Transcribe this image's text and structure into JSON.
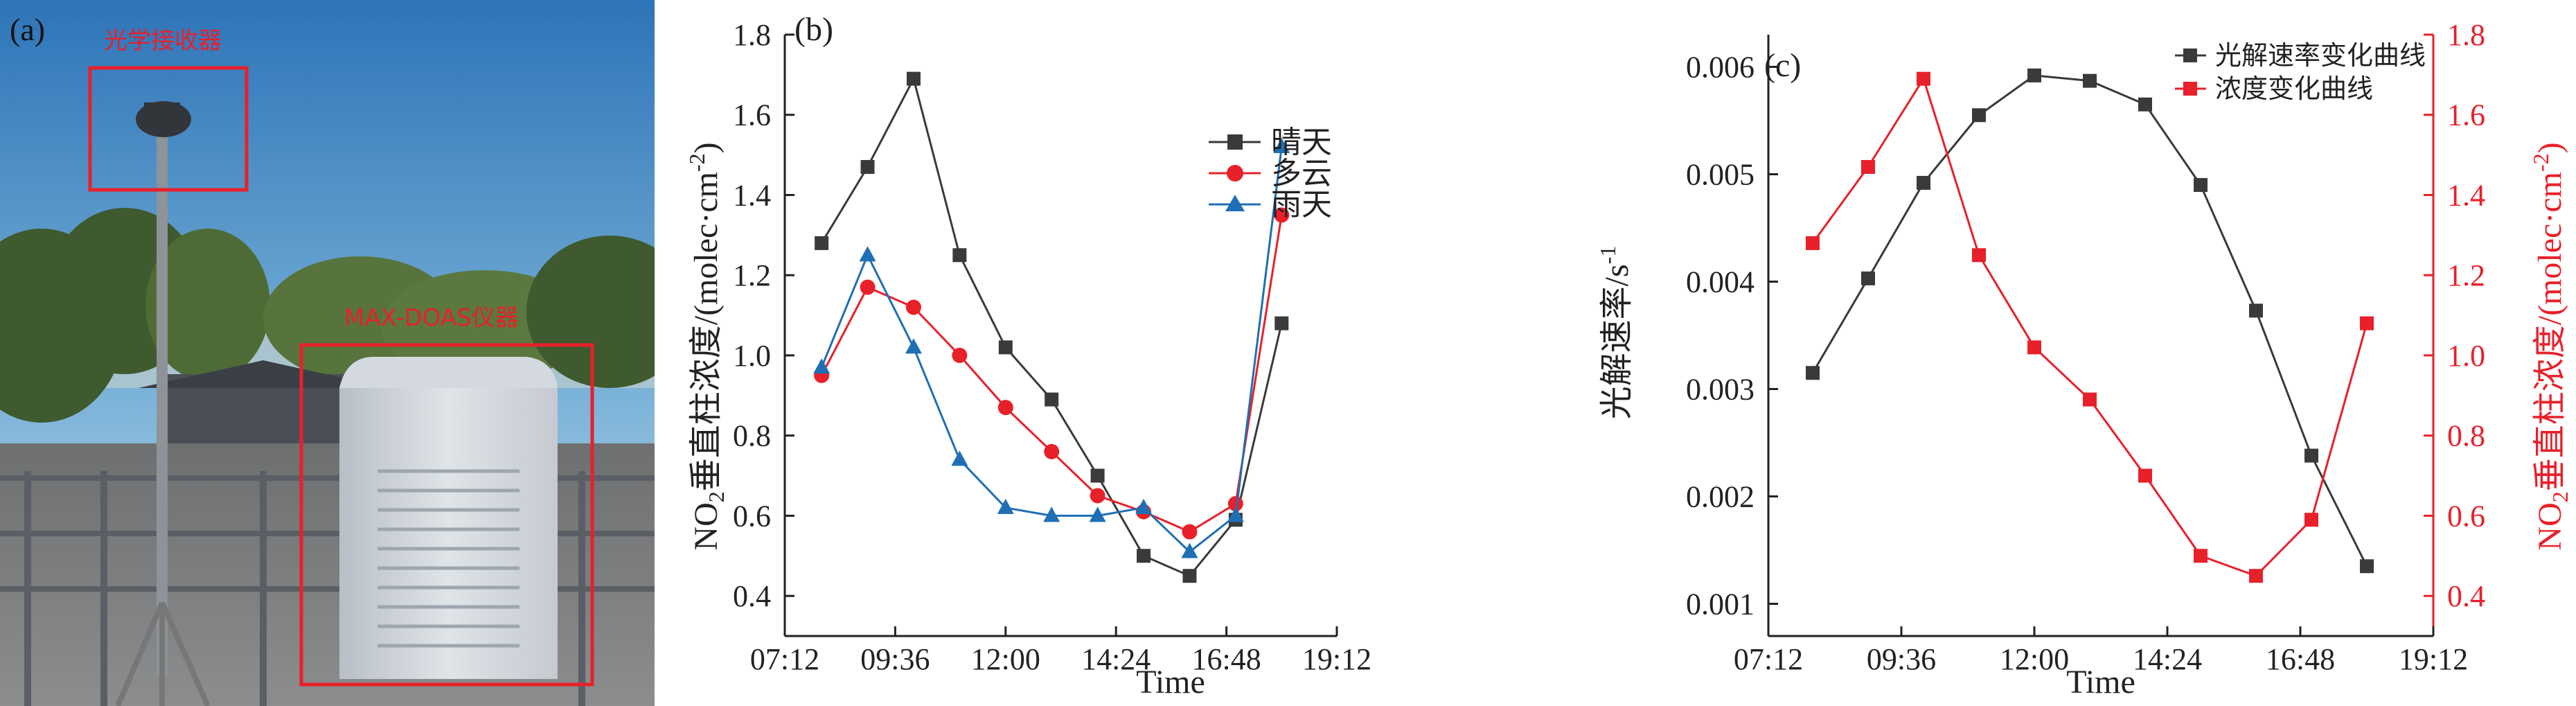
{
  "panel_a": {
    "label": "(a)",
    "annotation_receiver": "光学接收器",
    "annotation_instrument": "MAX-DOAS仪器",
    "colors": {
      "box": "#e8202a"
    }
  },
  "chart_data": [
    {
      "panel_label": "(b)",
      "type": "line",
      "x": [
        "08:00",
        "09:00",
        "10:00",
        "11:00",
        "12:00",
        "13:00",
        "14:00",
        "15:00",
        "16:00",
        "17:00",
        "18:00"
      ],
      "xlabel": "Time",
      "ylabel_main": "NO",
      "ylabel_sub": "2",
      "ylabel_rest": "垂直柱浓度/(molec·cm",
      "ylabel_sup": "-2",
      "ylabel_end": ")",
      "xlim": [
        "07:12",
        "19:12"
      ],
      "xticks": [
        "07:12",
        "09:36",
        "12:00",
        "14:24",
        "16:48",
        "19:12"
      ],
      "ylim": [
        0.3,
        1.8
      ],
      "yticks": [
        "0.4",
        "0.6",
        "0.8",
        "1.0",
        "1.2",
        "1.4",
        "1.6",
        "1.8"
      ],
      "legend_position": "top-right",
      "series": [
        {
          "name": "晴天",
          "marker": "square",
          "color": "#3a3a3a",
          "values": [
            1.28,
            1.47,
            1.69,
            1.25,
            1.02,
            0.89,
            0.7,
            0.5,
            0.45,
            0.59,
            1.08
          ]
        },
        {
          "name": "多云",
          "marker": "circle",
          "color": "#e8202a",
          "values": [
            0.95,
            1.17,
            1.12,
            1.0,
            0.87,
            0.76,
            0.65,
            0.61,
            0.56,
            0.63,
            1.35
          ]
        },
        {
          "name": "雨天",
          "marker": "triangle",
          "color": "#1f6fb5",
          "values": [
            0.97,
            1.25,
            1.02,
            0.74,
            0.62,
            0.6,
            0.6,
            0.62,
            0.51,
            0.6,
            1.52
          ]
        }
      ]
    },
    {
      "panel_label": "(c)",
      "type": "line",
      "x": [
        "08:00",
        "09:00",
        "10:00",
        "11:00",
        "12:00",
        "13:00",
        "14:00",
        "15:00",
        "16:00",
        "17:00",
        "18:00"
      ],
      "xlabel": "Time",
      "xlim": [
        "07:12",
        "19:12"
      ],
      "xticks": [
        "07:12",
        "09:36",
        "12:00",
        "14:24",
        "16:48",
        "19:12"
      ],
      "ylabel_left": "光解速率/s",
      "ylabel_left_sup": "-1",
      "ylim_left": [
        0.0007,
        0.0063
      ],
      "yticks_left": [
        "0.001",
        "0.002",
        "0.003",
        "0.004",
        "0.005",
        "0.006"
      ],
      "ylabel_right_main": "NO",
      "ylabel_right_sub": "2",
      "ylabel_right_rest": "垂直柱浓度/(molec·cm",
      "ylabel_right_sup": "-2",
      "ylabel_right_end": ")",
      "ylim_right": [
        0.3,
        1.8
      ],
      "yticks_right": [
        "0.4",
        "0.6",
        "0.8",
        "1.0",
        "1.2",
        "1.4",
        "1.6",
        "1.8"
      ],
      "legend_position": "top-right",
      "series": [
        {
          "name": "光解速率变化曲线",
          "axis": "left",
          "marker": "square",
          "color": "#3a3a3a",
          "values": [
            0.00315,
            0.00403,
            0.00492,
            0.00555,
            0.00592,
            0.00587,
            0.00565,
            0.0049,
            0.00373,
            0.00238,
            0.00135
          ]
        },
        {
          "name": "浓度变化曲线",
          "axis": "right",
          "marker": "square",
          "color": "#e8202a",
          "values": [
            1.28,
            1.47,
            1.69,
            1.25,
            1.02,
            0.89,
            0.7,
            0.5,
            0.45,
            0.59,
            1.08
          ]
        }
      ],
      "right_axis_color": "#e8202a"
    }
  ]
}
